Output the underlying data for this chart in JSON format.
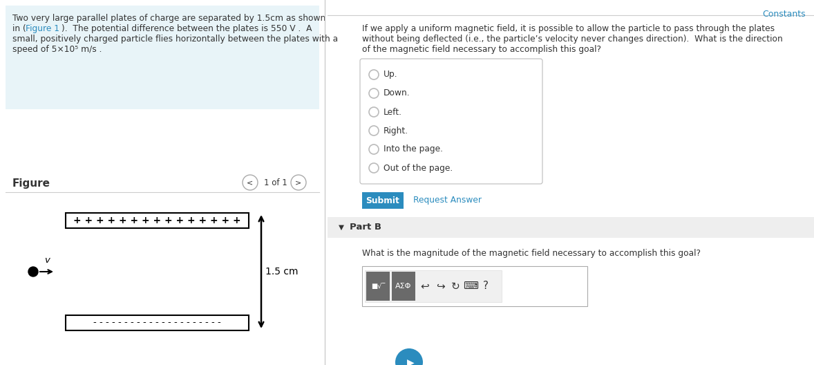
{
  "bg_color": "#ffffff",
  "left_panel_bg": "#e8f4f8",
  "figure_label": "Figure",
  "nav_text": "1 of 1",
  "plate_plus_text": "+ + + + + + + + + + + + + + +",
  "plate_minus_text": "- - - - - - - - - - - - - - - - - - - - -",
  "arrow_label": "1.5 cm",
  "velocity_label": "v",
  "right_panel_question_line1": "If we apply a uniform magnetic field, it is possible to allow the particle to pass through the plates",
  "right_panel_question_line2": "without being deflected (i.e., the particle’s velocity never changes direction).  What is the direction",
  "right_panel_question_line3": "of the magnetic field necessary to accomplish this goal?",
  "radio_options": [
    "Up.",
    "Down.",
    "Left.",
    "Right.",
    "Into the page.",
    "Out of the page."
  ],
  "submit_text": "Submit",
  "submit_bg": "#2b8cbe",
  "submit_color": "#ffffff",
  "request_answer_text": "Request Answer",
  "link_color": "#2b8cbe",
  "constants_text": "Constants",
  "part_b_text": "Part B",
  "part_b_question": "What is the magnitude of the magnetic field necessary to accomplish this goal?",
  "part_b_bg": "#eeeeee",
  "divider_color": "#cccccc",
  "border_color": "#aaaaaa",
  "radio_border": "#bbbbbb",
  "text_color": "#333333",
  "left_text_line1": "Two very large parallel plates of charge are separated by 1.5cm as shown",
  "left_text_line2_a": "in (",
  "left_text_line2_b": "Figure 1",
  "left_text_line2_c": ").  The potential difference between the plates is 550 V .  A",
  "left_text_line3": "small, positively charged particle flies horizontally between the plates with a",
  "left_text_line4": "speed of 5×10⁵ m/s .",
  "toolbar_btn1_text": "■√‾",
  "toolbar_btn2_text": "AΣΦ"
}
